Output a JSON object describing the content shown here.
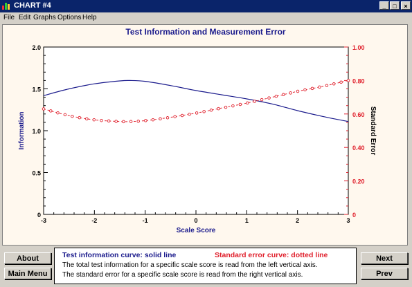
{
  "window": {
    "title": "CHART #4",
    "minimize": "_",
    "maximize": "□",
    "close": "×",
    "icon": "chart-app-icon"
  },
  "menu": [
    "File",
    "Edit",
    "Graphs",
    "Options",
    "Help"
  ],
  "chart_data": {
    "type": "line",
    "title": "Test Information and Measurement Error",
    "xlabel": "Scale Score",
    "ylabel": "Information",
    "y2label": "Standard Error",
    "xlim": [
      -3,
      3
    ],
    "ylim": [
      0,
      2
    ],
    "y2lim": [
      0,
      1
    ],
    "xticks": [
      -3,
      -2,
      -1,
      0,
      1,
      2,
      3
    ],
    "yticks": [
      "0",
      "0.5",
      "1.0",
      "1.5",
      "2.0"
    ],
    "y2ticks": [
      "0",
      "0.20",
      "0.40",
      "0.60",
      "0.80",
      "1.00"
    ],
    "series": [
      {
        "name": "Information",
        "axis": "left",
        "style": "solid",
        "color": "#1a1a8c",
        "x": [
          -3,
          -2.5,
          -2,
          -1.5,
          -1.3,
          -1,
          -0.5,
          0,
          0.5,
          1,
          1.5,
          2,
          2.5,
          3
        ],
        "y": [
          1.42,
          1.5,
          1.56,
          1.595,
          1.6,
          1.59,
          1.54,
          1.48,
          1.43,
          1.38,
          1.32,
          1.24,
          1.17,
          1.11
        ]
      },
      {
        "name": "Standard Error",
        "axis": "right",
        "style": "dotted",
        "color": "#e0202c",
        "x": [
          -3,
          -2.5,
          -2,
          -1.5,
          -1.3,
          -1,
          -0.5,
          0,
          0.5,
          1,
          1.5,
          2,
          2.5,
          3
        ],
        "y": [
          0.63,
          0.59,
          0.565,
          0.555,
          0.555,
          0.56,
          0.58,
          0.605,
          0.635,
          0.665,
          0.7,
          0.735,
          0.765,
          0.8
        ]
      }
    ]
  },
  "buttons": {
    "about": "About",
    "main_menu": "Main Menu",
    "next": "Next",
    "prev": "Prev"
  },
  "info": {
    "info_curve": "Test information curve: solid line",
    "error_curve": "Standard error curve: dotted line",
    "line1": "The total test information for a specific scale score is read from the left vertical axis.",
    "line2": "The standard error for a specific scale score is read from the right vertical axis."
  },
  "colors": {
    "titlebar": "#0a246a",
    "chart_bg": "#fff8ee",
    "info": "#1a1a8c",
    "error": "#e0202c"
  }
}
